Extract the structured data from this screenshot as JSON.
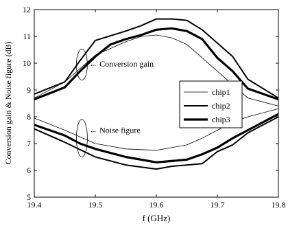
{
  "chart_data": {
    "type": "line",
    "title": "",
    "xlabel": "f (GHz)",
    "ylabel": "Conversion gain & Noise figure (dB)",
    "xlim": [
      19.4,
      19.8
    ],
    "ylim": [
      5,
      12
    ],
    "xticks": [
      "19.4",
      "19.5",
      "19.6",
      "19.7",
      "19.8"
    ],
    "yticks": [
      "5",
      "6",
      "7",
      "8",
      "9",
      "10",
      "11",
      "12"
    ],
    "grid": false,
    "legend_position": "center-right",
    "series": [
      {
        "name": "chip1",
        "group": "conversion-gain",
        "x": [
          19.4,
          19.45,
          19.475,
          19.5,
          19.55,
          19.575,
          19.6,
          19.625,
          19.65,
          19.7,
          19.75,
          19.8
        ],
        "y": [
          8.7,
          9.3,
          9.8,
          10.3,
          10.8,
          11.0,
          11.05,
          10.95,
          10.7,
          9.7,
          8.7,
          8.4
        ]
      },
      {
        "name": "chip2",
        "group": "conversion-gain",
        "x": [
          19.4,
          19.45,
          19.475,
          19.5,
          19.55,
          19.575,
          19.6,
          19.625,
          19.65,
          19.675,
          19.7,
          19.725,
          19.75,
          19.8
        ],
        "y": [
          8.85,
          9.3,
          10.1,
          10.85,
          11.2,
          11.4,
          11.65,
          11.65,
          11.6,
          11.25,
          10.75,
          10.25,
          9.4,
          8.7
        ]
      },
      {
        "name": "chip3",
        "group": "conversion-gain",
        "x": [
          19.4,
          19.45,
          19.475,
          19.5,
          19.525,
          19.55,
          19.575,
          19.6,
          19.625,
          19.65,
          19.675,
          19.7,
          19.725,
          19.75,
          19.8
        ],
        "y": [
          8.65,
          9.1,
          9.7,
          10.25,
          10.7,
          10.9,
          11.05,
          11.25,
          11.3,
          11.2,
          10.9,
          10.2,
          9.7,
          9.05,
          8.65
        ]
      },
      {
        "name": "chip1",
        "group": "noise-figure",
        "x": [
          19.4,
          19.45,
          19.5,
          19.55,
          19.6,
          19.625,
          19.65,
          19.675,
          19.7,
          19.725,
          19.75,
          19.8
        ],
        "y": [
          7.95,
          7.5,
          7.0,
          6.8,
          6.75,
          6.85,
          6.95,
          7.2,
          7.5,
          7.8,
          8.0,
          8.3
        ]
      },
      {
        "name": "chip2",
        "group": "noise-figure",
        "x": [
          19.4,
          19.45,
          19.5,
          19.55,
          19.6,
          19.625,
          19.65,
          19.675,
          19.7,
          19.725,
          19.75,
          19.8
        ],
        "y": [
          7.55,
          7.05,
          6.5,
          6.2,
          6.05,
          6.15,
          6.2,
          6.25,
          6.7,
          6.95,
          7.4,
          8.0
        ]
      },
      {
        "name": "chip3",
        "group": "noise-figure",
        "x": [
          19.4,
          19.45,
          19.475,
          19.5,
          19.55,
          19.6,
          19.625,
          19.65,
          19.675,
          19.7,
          19.725,
          19.75,
          19.8
        ],
        "y": [
          7.7,
          7.3,
          7.0,
          6.8,
          6.5,
          6.3,
          6.35,
          6.4,
          6.6,
          6.85,
          7.2,
          7.5,
          8.1
        ]
      }
    ],
    "annotations": [
      {
        "text": "← Conversion gain",
        "x": 19.49,
        "y": 9.98,
        "ellipse": {
          "cx": 19.478,
          "cy": 9.95,
          "rx": 0.009,
          "ry": 0.58
        }
      },
      {
        "text": "← Noise figure",
        "x": 19.49,
        "y": 7.5,
        "ellipse": {
          "cx": 19.478,
          "cy": 7.2,
          "rx": 0.009,
          "ry": 0.7
        }
      }
    ]
  }
}
